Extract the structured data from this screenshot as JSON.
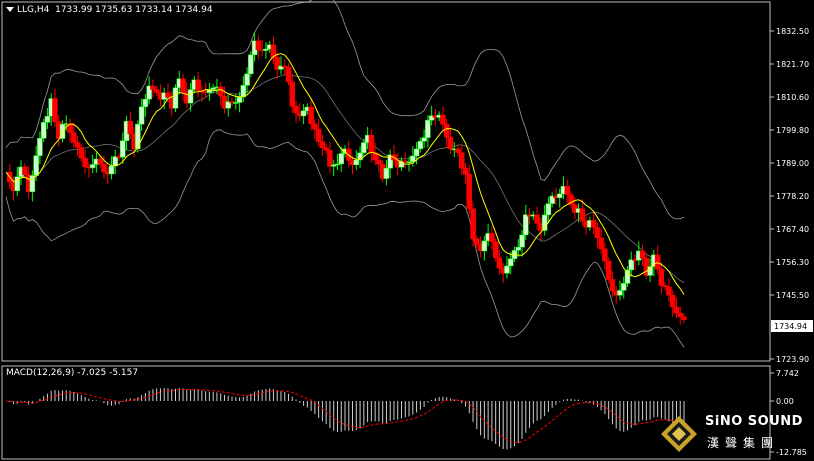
{
  "header": {
    "symbol": "LLG,H4",
    "ohlc": "1733.99 1735.63 1733.14 1734.94"
  },
  "current_price_label": "1734.94",
  "macd_label": "MACD(12,26,9) -7.025 -5.157",
  "logo": {
    "name": "SiNO SOUND",
    "chinese": "漢聲集團"
  },
  "colors": {
    "bull": "#00ff00",
    "bear": "#ff0000",
    "bull_body": "#ccffcc",
    "ma": "#ffff00",
    "bands": "#c0c0c0",
    "signal": "#ff0000"
  },
  "chart_data": [
    {
      "type": "candlestick",
      "title": "LLG,H4",
      "price_axis_ticks": [
        "1832.50",
        "1821.70",
        "1810.60",
        "1799.80",
        "1789.00",
        "1778.20",
        "1767.40",
        "1756.30",
        "1745.50",
        "1734.94",
        "1723.90"
      ],
      "ylim": [
        1720.0,
        1842.0
      ],
      "overlays": [
        "moving average (yellow)",
        "bollinger bands (grey)"
      ],
      "close_path": [
        1786,
        1782,
        1787,
        1781,
        1790,
        1803,
        1808,
        1797,
        1804,
        1795,
        1792,
        1786,
        1791,
        1784,
        1788,
        1793,
        1802,
        1795,
        1806,
        1815,
        1810,
        1812,
        1809,
        1816,
        1810,
        1815,
        1813,
        1811,
        1814,
        1809,
        1808,
        1812,
        1817,
        1830,
        1824,
        1828,
        1822,
        1820,
        1809,
        1803,
        1808,
        1798,
        1794,
        1790,
        1788,
        1795,
        1787,
        1793,
        1796,
        1790,
        1786,
        1791,
        1789,
        1788,
        1792,
        1794,
        1803,
        1806,
        1801,
        1795,
        1791,
        1786,
        1762,
        1760,
        1768,
        1757,
        1754,
        1756,
        1762,
        1770,
        1772,
        1769,
        1775,
        1779,
        1780,
        1776,
        1772,
        1768,
        1770,
        1760,
        1752,
        1744,
        1750,
        1755,
        1760,
        1754,
        1758,
        1750,
        1744,
        1740,
        1735
      ]
    },
    {
      "type": "macd",
      "title": "MACD(12,26,9) -7.025 -5.157",
      "axis_ticks": [
        "7.742",
        "0.00",
        "-12.785"
      ],
      "ylim": [
        -12.785,
        7.742
      ],
      "last_macd": -7.025,
      "last_signal": -5.157
    }
  ]
}
